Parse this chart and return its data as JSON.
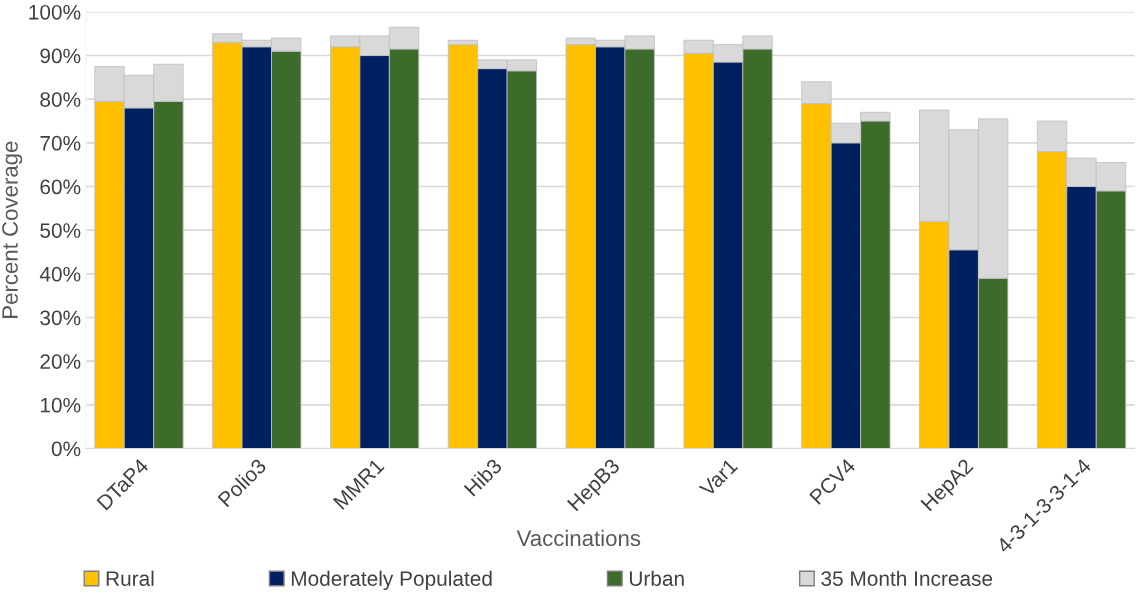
{
  "chart_data": {
    "type": "bar",
    "stacked": true,
    "xlabel": "Vaccinations",
    "ylabel": "Percent Coverage",
    "categories": [
      null,
      "DTaP4",
      null,
      null,
      null,
      "Polio3",
      null,
      null,
      null,
      "MMR1",
      null,
      null,
      null,
      "Hib3",
      null,
      null,
      null,
      "HepB3",
      null,
      null,
      null,
      "Var1",
      null,
      null,
      null,
      "PCV4",
      null,
      null,
      null,
      "HepA2",
      null,
      null,
      null,
      "4-3-1-3-3-1-4",
      null
    ],
    "series": [
      {
        "name": "Rural",
        "color": "#ffc000",
        "values": [
          79.5,
          null,
          null,
          null,
          93,
          null,
          null,
          null,
          92,
          null,
          null,
          null,
          92.5,
          null,
          null,
          null,
          92.5,
          null,
          null,
          null,
          90.5,
          null,
          null,
          null,
          79,
          null,
          null,
          null,
          52,
          null,
          null,
          null,
          68,
          null,
          null
        ]
      },
      {
        "name": "Moderately Populated",
        "color": "#002060",
        "values": [
          null,
          78,
          null,
          null,
          null,
          92,
          null,
          null,
          null,
          90,
          null,
          null,
          null,
          87,
          null,
          null,
          null,
          92,
          null,
          null,
          null,
          88.5,
          null,
          null,
          null,
          70,
          null,
          null,
          null,
          45.5,
          null,
          null,
          null,
          60,
          null
        ]
      },
      {
        "name": "Urban",
        "color": "#3d6b2a",
        "values": [
          null,
          null,
          79.5,
          null,
          null,
          null,
          91,
          null,
          null,
          null,
          91.5,
          null,
          null,
          null,
          86.5,
          null,
          null,
          null,
          91.5,
          null,
          null,
          null,
          91.5,
          null,
          null,
          null,
          75,
          null,
          null,
          null,
          39,
          null,
          null,
          null,
          59
        ]
      },
      {
        "name": "35 Month Increase",
        "color": "#d9d9d9",
        "values": [
          8,
          7.5,
          8.5,
          null,
          2,
          1.5,
          3,
          null,
          2.5,
          4.5,
          5,
          null,
          1,
          2,
          2.5,
          null,
          1.5,
          1.5,
          3,
          null,
          3,
          4,
          3,
          null,
          5,
          4.5,
          2,
          null,
          25.5,
          27.5,
          36.5,
          null,
          7,
          6.5,
          6.5
        ]
      }
    ],
    "ylim": [
      0,
      100
    ],
    "yticks": [
      {
        "value": 0,
        "label": "0%"
      },
      {
        "value": 10,
        "label": "10%"
      },
      {
        "value": 20,
        "label": "20%"
      },
      {
        "value": 30,
        "label": "30%"
      },
      {
        "value": 40,
        "label": "40%"
      },
      {
        "value": 50,
        "label": "50%"
      },
      {
        "value": 60,
        "label": "60%"
      },
      {
        "value": 70,
        "label": "70%"
      },
      {
        "value": 80,
        "label": "80%"
      },
      {
        "value": 90,
        "label": "90%"
      },
      {
        "value": 100,
        "label": "100%"
      }
    ],
    "grid": "y",
    "legend": "bottom"
  }
}
